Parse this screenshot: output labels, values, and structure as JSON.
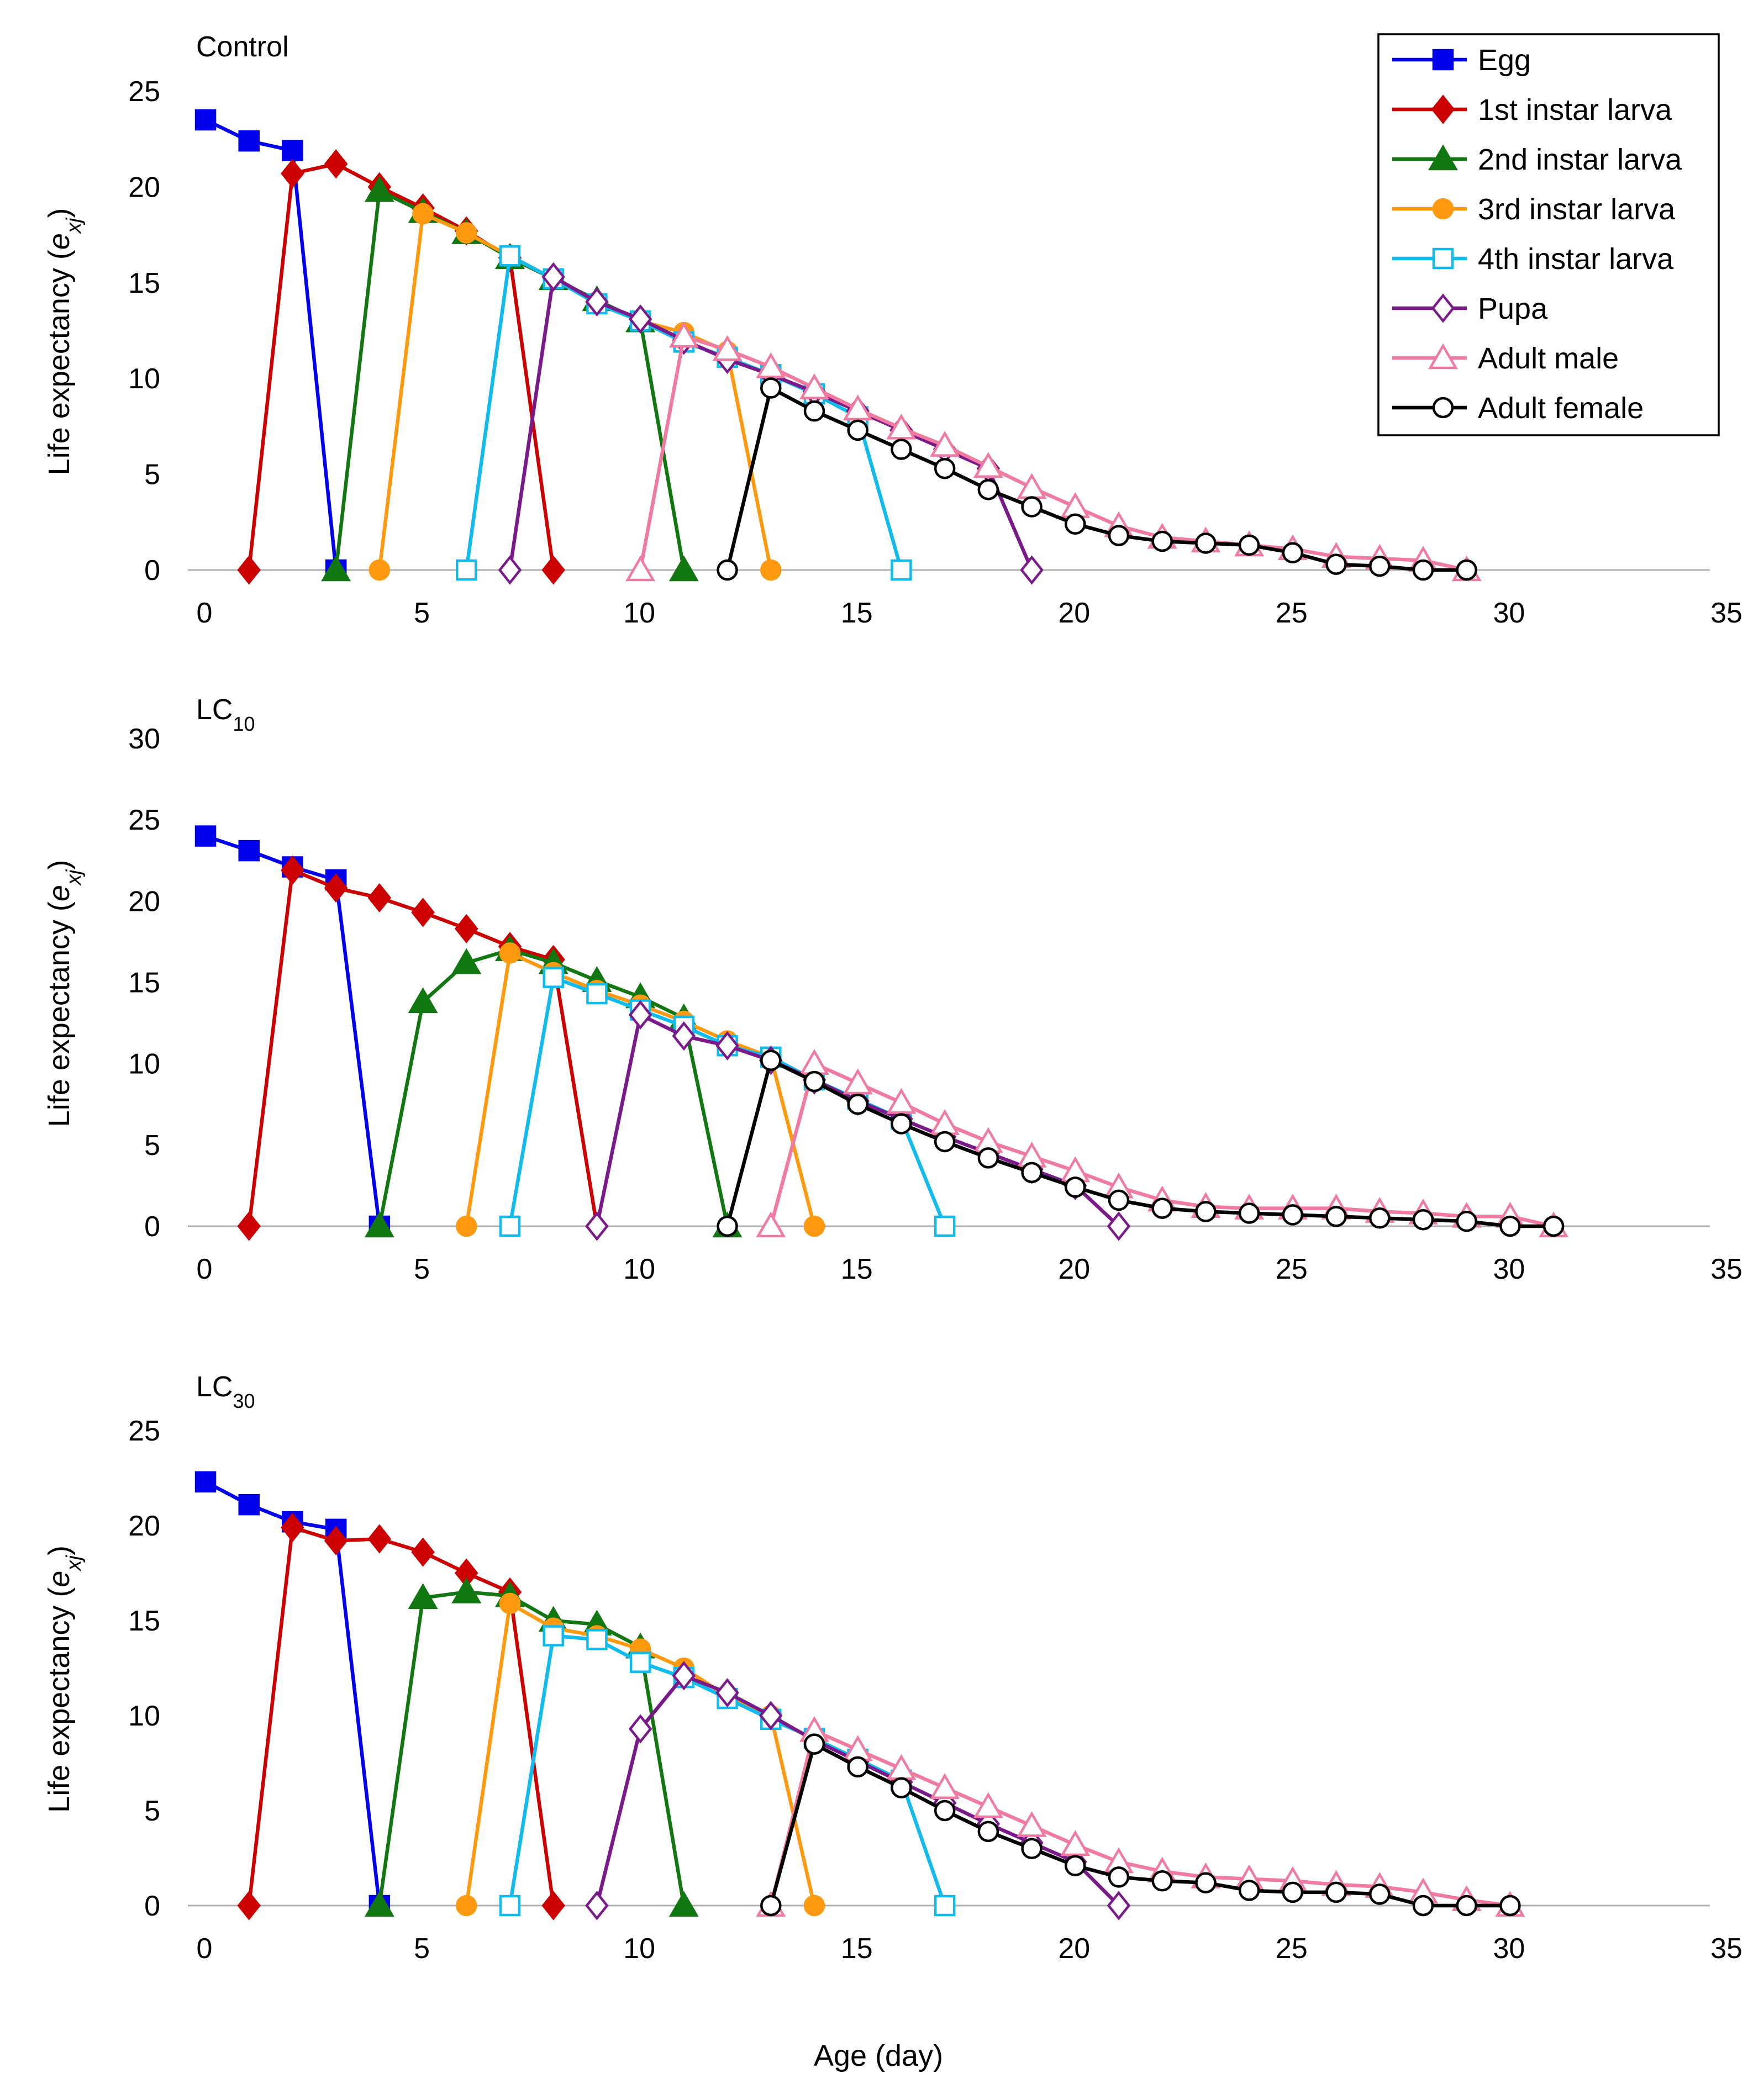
{
  "figure": {
    "xlabel": "Age (day)",
    "ylabel_prefix": "Life expectancy (",
    "ylabel_var": "e",
    "ylabel_sub": "xj",
    "ylabel_suffix": ")"
  },
  "legend": {
    "entries": [
      {
        "key": "egg",
        "label": "Egg"
      },
      {
        "key": "l1",
        "label": "1st instar larva"
      },
      {
        "key": "l2",
        "label": "2nd instar larva"
      },
      {
        "key": "l3",
        "label": "3rd instar larva"
      },
      {
        "key": "l4",
        "label": "4th instar larva"
      },
      {
        "key": "pupa",
        "label": "Pupa"
      },
      {
        "key": "male",
        "label": "Adult male"
      },
      {
        "key": "female",
        "label": "Adult female"
      }
    ]
  },
  "styles": {
    "egg": {
      "color": "#0000EE",
      "marker": "square",
      "filled": true
    },
    "l1": {
      "color": "#CC0000",
      "marker": "diamond",
      "filled": true
    },
    "l2": {
      "color": "#117711",
      "marker": "triangle",
      "filled": true
    },
    "l3": {
      "color": "#FF9A10",
      "marker": "circle",
      "filled": true
    },
    "l4": {
      "color": "#11BBEE",
      "marker": "square",
      "filled": false
    },
    "pupa": {
      "color": "#7A1A8A",
      "marker": "diamond",
      "filled": false
    },
    "male": {
      "color": "#F07AA0",
      "marker": "triangle",
      "filled": false
    },
    "female": {
      "color": "#000000",
      "marker": "circle",
      "filled": false
    }
  },
  "chart_data": [
    {
      "type": "line",
      "title": "Control",
      "title_main": "Control",
      "title_sub": "",
      "xlabel": "Age (day)",
      "ylabel": "Life expectancy (exj)",
      "xlim": [
        0,
        35
      ],
      "ylim": [
        0,
        25
      ],
      "xticks": [
        0,
        5,
        10,
        15,
        20,
        25,
        30,
        35
      ],
      "yticks": [
        0,
        5,
        10,
        15,
        20,
        25
      ],
      "series": [
        {
          "key": "egg",
          "name": "Egg",
          "x": [
            0,
            1,
            2,
            3
          ],
          "y": [
            23.5,
            22.4,
            21.9,
            0
          ]
        },
        {
          "key": "l1",
          "name": "1st instar larva",
          "x": [
            1,
            2,
            3,
            4,
            5,
            6,
            7,
            8
          ],
          "y": [
            0,
            20.7,
            21.2,
            20.0,
            18.9,
            17.7,
            16.3,
            0
          ]
        },
        {
          "key": "l2",
          "name": "2nd instar larva",
          "x": [
            3,
            4,
            5,
            6,
            7,
            8,
            9,
            10,
            11
          ],
          "y": [
            0,
            19.8,
            18.7,
            17.6,
            16.3,
            15.2,
            14.1,
            13.0,
            0
          ]
        },
        {
          "key": "l3",
          "name": "3rd instar larva",
          "x": [
            4,
            5,
            6,
            7,
            8,
            9,
            10,
            11,
            12,
            13
          ],
          "y": [
            0,
            18.6,
            17.6,
            16.4,
            15.2,
            14.0,
            13.0,
            12.4,
            11.4,
            0
          ]
        },
        {
          "key": "l4",
          "name": "4th instar larva",
          "x": [
            6,
            7,
            8,
            9,
            10,
            11,
            12,
            13,
            14,
            15,
            16
          ],
          "y": [
            0,
            16.4,
            15.2,
            13.9,
            13.0,
            11.9,
            11.1,
            10.2,
            9.2,
            8.0,
            0
          ]
        },
        {
          "key": "pupa",
          "name": "Pupa",
          "x": [
            7,
            8,
            9,
            10,
            11,
            12,
            13,
            14,
            15,
            16,
            17,
            18,
            19
          ],
          "y": [
            0,
            15.3,
            14.0,
            13.1,
            12.0,
            11.0,
            10.2,
            9.3,
            8.3,
            7.3,
            6.3,
            5.3,
            0
          ]
        },
        {
          "key": "male",
          "name": "Adult male",
          "x": [
            10,
            11,
            12,
            13,
            14,
            15,
            16,
            17,
            18,
            19,
            20,
            21,
            22,
            23,
            24,
            25,
            26,
            27,
            28,
            29
          ],
          "y": [
            0,
            12.2,
            11.5,
            10.6,
            9.5,
            8.4,
            7.4,
            6.5,
            5.4,
            4.3,
            3.3,
            2.3,
            1.7,
            1.5,
            1.3,
            1.1,
            0.7,
            0.6,
            0.5,
            0.0
          ]
        },
        {
          "key": "female",
          "name": "Adult female",
          "x": [
            12,
            13,
            14,
            15,
            16,
            17,
            18,
            19,
            20,
            21,
            22,
            23,
            24,
            25,
            26,
            27,
            28,
            29
          ],
          "y": [
            0,
            9.5,
            8.3,
            7.3,
            6.3,
            5.3,
            4.2,
            3.3,
            2.4,
            1.8,
            1.5,
            1.4,
            1.3,
            0.9,
            0.3,
            0.2,
            0.0,
            0.0
          ]
        }
      ]
    },
    {
      "type": "line",
      "title": "LC10",
      "title_main": "LC",
      "title_sub": "10",
      "xlabel": "Age (day)",
      "ylabel": "Life expectancy (exj)",
      "xlim": [
        0,
        35
      ],
      "ylim": [
        0,
        30
      ],
      "xticks": [
        0,
        5,
        10,
        15,
        20,
        25,
        30,
        35
      ],
      "yticks": [
        0,
        5,
        10,
        15,
        20,
        25,
        30
      ],
      "series": [
        {
          "key": "egg",
          "name": "Egg",
          "x": [
            0,
            1,
            2,
            3,
            4
          ],
          "y": [
            24.0,
            23.1,
            22.1,
            21.3,
            0
          ]
        },
        {
          "key": "l1",
          "name": "1st instar larva",
          "x": [
            1,
            2,
            3,
            4,
            5,
            6,
            7,
            8,
            9
          ],
          "y": [
            0,
            21.9,
            20.8,
            20.2,
            19.3,
            18.3,
            17.2,
            16.4,
            0
          ]
        },
        {
          "key": "l2",
          "name": "2nd instar larva",
          "x": [
            4,
            5,
            6,
            7,
            8,
            9,
            10,
            11,
            12
          ],
          "y": [
            0,
            13.8,
            16.2,
            17.0,
            16.2,
            15.1,
            14.1,
            12.8,
            0
          ]
        },
        {
          "key": "l3",
          "name": "3rd instar larva",
          "x": [
            6,
            7,
            8,
            9,
            10,
            11,
            12,
            13,
            14
          ],
          "y": [
            0,
            16.8,
            15.6,
            14.5,
            13.6,
            12.6,
            11.4,
            10.4,
            0
          ]
        },
        {
          "key": "l4",
          "name": "4th instar larva",
          "x": [
            7,
            8,
            9,
            10,
            11,
            12,
            13,
            14,
            15,
            16,
            17
          ],
          "y": [
            0,
            15.3,
            14.3,
            13.3,
            12.3,
            11.1,
            10.4,
            9.0,
            7.8,
            6.6,
            0
          ]
        },
        {
          "key": "pupa",
          "name": "Pupa",
          "x": [
            9,
            10,
            11,
            12,
            13,
            14,
            15,
            16,
            17,
            18,
            19,
            20,
            21
          ],
          "y": [
            0,
            13.0,
            11.7,
            11.1,
            10.2,
            9.0,
            7.7,
            6.6,
            5.5,
            4.5,
            3.5,
            2.5,
            0
          ]
        },
        {
          "key": "male",
          "name": "Adult male",
          "x": [
            13,
            14,
            15,
            16,
            17,
            18,
            19,
            20,
            21,
            22,
            23,
            24,
            25,
            26,
            27,
            28,
            29,
            30,
            31
          ],
          "y": [
            0,
            10.0,
            8.8,
            7.6,
            6.3,
            5.2,
            4.3,
            3.4,
            2.4,
            1.6,
            1.2,
            1.1,
            1.1,
            1.1,
            0.9,
            0.8,
            0.6,
            0.6,
            0.0
          ]
        },
        {
          "key": "female",
          "name": "Adult female",
          "x": [
            12,
            13,
            14,
            15,
            16,
            17,
            18,
            19,
            20,
            21,
            22,
            23,
            24,
            25,
            26,
            27,
            28,
            29,
            30,
            31
          ],
          "y": [
            0,
            10.2,
            8.9,
            7.5,
            6.3,
            5.2,
            4.2,
            3.3,
            2.4,
            1.6,
            1.1,
            0.9,
            0.8,
            0.7,
            0.6,
            0.5,
            0.4,
            0.3,
            0.0,
            0.0
          ]
        }
      ]
    },
    {
      "type": "line",
      "title": "LC30",
      "title_main": "LC",
      "title_sub": "30",
      "xlabel": "Age (day)",
      "ylabel": "Life expectancy (exj)",
      "xlim": [
        0,
        35
      ],
      "ylim": [
        0,
        25
      ],
      "xticks": [
        0,
        5,
        10,
        15,
        20,
        25,
        30,
        35
      ],
      "yticks": [
        0,
        5,
        10,
        15,
        20,
        25
      ],
      "series": [
        {
          "key": "egg",
          "name": "Egg",
          "x": [
            0,
            1,
            2,
            3,
            4
          ],
          "y": [
            22.3,
            21.1,
            20.2,
            19.8,
            0
          ]
        },
        {
          "key": "l1",
          "name": "1st instar larva",
          "x": [
            1,
            2,
            3,
            4,
            5,
            6,
            7,
            8
          ],
          "y": [
            0,
            19.9,
            19.2,
            19.3,
            18.6,
            17.5,
            16.5,
            0
          ]
        },
        {
          "key": "l2",
          "name": "2nd instar larva",
          "x": [
            4,
            5,
            6,
            7,
            8,
            9,
            10,
            11
          ],
          "y": [
            0,
            16.2,
            16.5,
            16.3,
            15.0,
            14.8,
            13.6,
            0
          ]
        },
        {
          "key": "l3",
          "name": "3rd instar larva",
          "x": [
            6,
            7,
            8,
            9,
            10,
            11,
            12,
            13,
            14
          ],
          "y": [
            0,
            15.9,
            14.6,
            14.2,
            13.5,
            12.5,
            11.0,
            10.0,
            0
          ]
        },
        {
          "key": "l4",
          "name": "4th instar larva",
          "x": [
            7,
            8,
            9,
            10,
            11,
            12,
            13,
            14,
            15,
            16,
            17
          ],
          "y": [
            0,
            14.2,
            14.0,
            12.8,
            12.0,
            10.9,
            9.8,
            8.8,
            7.7,
            6.6,
            0
          ]
        },
        {
          "key": "pupa",
          "name": "Pupa",
          "x": [
            9,
            10,
            11,
            12,
            13,
            14,
            15,
            16,
            17,
            18,
            19,
            20,
            21
          ],
          "y": [
            0,
            9.3,
            12.1,
            11.2,
            10.0,
            8.7,
            7.6,
            6.5,
            5.4,
            4.3,
            3.3,
            2.3,
            0
          ]
        },
        {
          "key": "male",
          "name": "Adult male",
          "x": [
            13,
            14,
            15,
            16,
            17,
            18,
            19,
            20,
            21,
            22,
            23,
            24,
            25,
            26,
            27,
            28,
            29,
            30
          ],
          "y": [
            0,
            9.2,
            8.2,
            7.2,
            6.2,
            5.2,
            4.2,
            3.2,
            2.3,
            1.8,
            1.5,
            1.4,
            1.3,
            1.1,
            1.0,
            0.7,
            0.3,
            0.0
          ]
        },
        {
          "key": "female",
          "name": "Adult female",
          "x": [
            13,
            14,
            15,
            16,
            17,
            18,
            19,
            20,
            21,
            22,
            23,
            24,
            25,
            26,
            27,
            28,
            29,
            30
          ],
          "y": [
            0,
            8.5,
            7.3,
            6.2,
            5.0,
            3.9,
            3.0,
            2.1,
            1.5,
            1.3,
            1.2,
            0.8,
            0.7,
            0.7,
            0.6,
            0.0,
            0.0,
            0.0
          ]
        }
      ]
    }
  ]
}
